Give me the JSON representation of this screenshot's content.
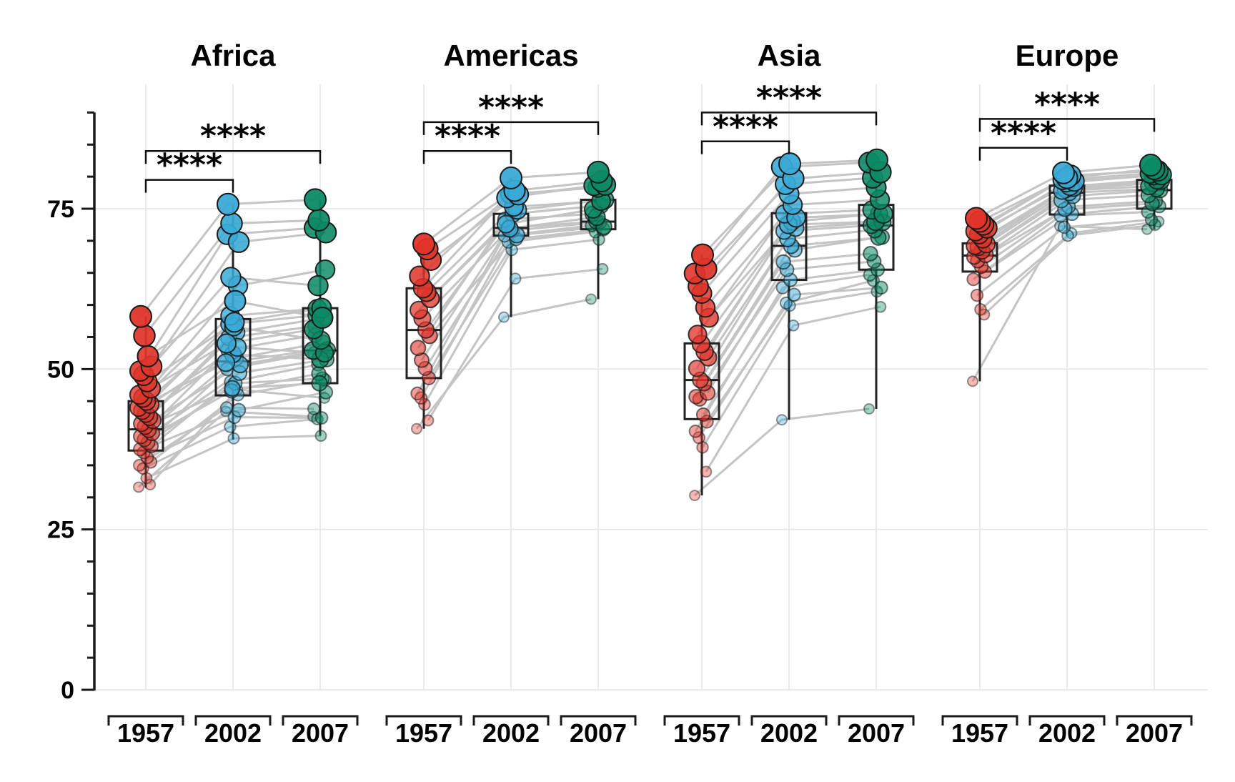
{
  "chart_data": {
    "type": "scatter",
    "subtype": "paired dot plot with boxplots, faceted",
    "ylim": [
      0,
      90
    ],
    "yticks": [
      "0",
      "25",
      "50",
      "75"
    ],
    "ytick_values": [
      0,
      25,
      50,
      75
    ],
    "grid": true,
    "colors": {
      "1957": "#E0342A",
      "2002": "#3AAAD6",
      "2007": "#0B8A65",
      "line": "#C4C4C4",
      "grid": "#E4E4E4"
    },
    "categories": [
      "1957",
      "2002",
      "2007"
    ],
    "facets": [
      {
        "title": "Africa",
        "brackets": [
          {
            "from": "1957",
            "to": "2002",
            "label": "****",
            "y": 79.5
          },
          {
            "from": "1957",
            "to": "2007",
            "label": "****",
            "y": 84
          }
        ],
        "box": {
          "1957": [
            31.5,
            37.3,
            40.6,
            45,
            58.2
          ],
          "2002": [
            39,
            45.9,
            51.2,
            57.8,
            75.7
          ],
          "2007": [
            39.6,
            47.8,
            52.9,
            59.5,
            76.4
          ]
        },
        "series": [
          {
            "values": [
              31.6,
              43.4,
              42.6
            ]
          },
          {
            "values": [
              32,
              46.8,
              45.5
            ]
          },
          {
            "values": [
              33,
              39.2,
              39.6
            ]
          },
          {
            "values": [
              34.5,
              41,
              42.2
            ]
          },
          {
            "values": [
              35,
              44,
              43.8
            ]
          },
          {
            "values": [
              35.5,
              46,
              48.3
            ]
          },
          {
            "values": [
              36.2,
              42.5,
              42.4
            ]
          },
          {
            "values": [
              37,
              48,
              50.7
            ]
          },
          {
            "values": [
              37.5,
              50,
              52.5
            ]
          },
          {
            "values": [
              38,
              43.6,
              46.4
            ]
          },
          {
            "values": [
              38.5,
              47.8,
              48.5
            ]
          },
          {
            "values": [
              39,
              46.6,
              49.3
            ]
          },
          {
            "values": [
              39.5,
              53,
              55.3
            ]
          },
          {
            "values": [
              40,
              49.4,
              51.5
            ]
          },
          {
            "values": [
              40.5,
              51.7,
              54.1
            ]
          },
          {
            "values": [
              41,
              47,
              47.8
            ]
          },
          {
            "values": [
              41.5,
              54.9,
              56.7
            ]
          },
          {
            "values": [
              42,
              50.7,
              53
            ]
          },
          {
            "values": [
              42.5,
              55.7,
              58
            ]
          },
          {
            "values": [
              43,
              52.3,
              51.5
            ]
          },
          {
            "values": [
              43.5,
              57,
              58.4
            ]
          },
          {
            "values": [
              44,
              51,
              52.9
            ]
          },
          {
            "values": [
              44.5,
              53.4,
              52.5
            ]
          },
          {
            "values": [
              45,
              56.6,
              54.5
            ]
          },
          {
            "values": [
              45.5,
              58.3,
              59.4
            ]
          },
          {
            "values": [
              46,
              54,
              56.2
            ]
          },
          {
            "values": [
              47,
              63,
              65.5
            ]
          },
          {
            "values": [
              48,
              57.3,
              59.5
            ]
          },
          {
            "values": [
              49,
              64.3,
              63
            ]
          },
          {
            "values": [
              49.7,
              71,
              72
            ]
          },
          {
            "values": [
              50.4,
              69.8,
              71.3
            ]
          },
          {
            "values": [
              52,
              60.6,
              58
            ]
          },
          {
            "values": [
              55.2,
              72.7,
              73.2
            ]
          },
          {
            "values": [
              58.2,
              75.7,
              76.4
            ]
          }
        ]
      },
      {
        "title": "Americas",
        "brackets": [
          {
            "from": "1957",
            "to": "2002",
            "label": "****",
            "y": 84
          },
          {
            "from": "1957",
            "to": "2007",
            "label": "****",
            "y": 88.5
          }
        ],
        "box": {
          "1957": [
            40.7,
            48.6,
            56.1,
            62.6,
            69.8
          ],
          "2002": [
            58.1,
            70.8,
            72,
            74.2,
            79.8
          ],
          "2007": [
            60.9,
            71.8,
            73,
            76.4,
            80.7
          ]
        },
        "series": [
          {
            "values": [
              40.7,
              58.1,
              60.9
            ]
          },
          {
            "values": [
              42,
              64.1,
              65.6
            ]
          },
          {
            "values": [
              44.5,
              68.6,
              70.2
            ]
          },
          {
            "values": [
              45.5,
              69.8,
              71.4
            ]
          },
          {
            "values": [
              46.2,
              70.8,
              72.4
            ]
          },
          {
            "values": [
              48.6,
              70.3,
              71.8
            ]
          },
          {
            "values": [
              50.1,
              71.6,
              72.9
            ]
          },
          {
            "values": [
              51.4,
              72,
              73
            ]
          },
          {
            "values": [
              53.3,
              73.3,
              74.2
            ]
          },
          {
            "values": [
              55.2,
              70.9,
              72.2
            ]
          },
          {
            "values": [
              56.1,
              74.2,
              75.5
            ]
          },
          {
            "values": [
              57.9,
              71.9,
              73.7
            ]
          },
          {
            "values": [
              59.2,
              72.6,
              74.9
            ]
          },
          {
            "values": [
              61,
              74.8,
              76.4
            ]
          },
          {
            "values": [
              62,
              75.3,
              76.2
            ]
          },
          {
            "values": [
              62.6,
              77.3,
              78.3
            ]
          },
          {
            "values": [
              64.5,
              76.7,
              78.6
            ]
          },
          {
            "values": [
              67,
              77.2,
              78.7
            ]
          },
          {
            "values": [
              68.7,
              77.8,
              79.3
            ]
          },
          {
            "values": [
              69.5,
              79.8,
              80.7
            ]
          }
        ]
      },
      {
        "title": "Asia",
        "brackets": [
          {
            "from": "1957",
            "to": "2002",
            "label": "****",
            "y": 85.5
          },
          {
            "from": "1957",
            "to": "2007",
            "label": "****",
            "y": 90
          }
        ],
        "box": {
          "1957": [
            30.3,
            42.2,
            48.3,
            54,
            67.8
          ],
          "2002": [
            42.1,
            63.9,
            69.2,
            74.3,
            82
          ],
          "2007": [
            43.8,
            65.5,
            72.4,
            75.6,
            82.6
          ]
        },
        "series": [
          {
            "values": [
              30.3,
              42.1,
              43.8
            ]
          },
          {
            "values": [
              34,
              56.8,
              59.7
            ]
          },
          {
            "values": [
              37.8,
              59.9,
              62.1
            ]
          },
          {
            "values": [
              39.3,
              60.3,
              63.8
            ]
          },
          {
            "values": [
              40.3,
              62.7,
              64.7
            ]
          },
          {
            "values": [
              41.8,
              61.6,
              62.7
            ]
          },
          {
            "values": [
              42.9,
              63.9,
              65.5
            ]
          },
          {
            "values": [
              45.3,
              65.5,
              66.8
            ]
          },
          {
            "values": [
              45.7,
              66.7,
              68
            ]
          },
          {
            "values": [
              46.3,
              68.6,
              70.6
            ]
          },
          {
            "values": [
              47.8,
              69.2,
              70.5
            ]
          },
          {
            "values": [
              48.3,
              70.3,
              71.7
            ]
          },
          {
            "values": [
              50.1,
              71.5,
              72.4
            ]
          },
          {
            "values": [
              51.8,
              72,
              72.9
            ]
          },
          {
            "values": [
              52.7,
              73,
              74.2
            ]
          },
          {
            "values": [
              53.9,
              72.5,
              73
            ]
          },
          {
            "values": [
              55.4,
              74.2,
              74.8
            ]
          },
          {
            "values": [
              58,
              73.6,
              74.2
            ]
          },
          {
            "values": [
              59.6,
              75.6,
              76.4
            ]
          },
          {
            "values": [
              61.8,
              77.3,
              78.3
            ]
          },
          {
            "values": [
              62.9,
              78.8,
              79.8
            ]
          },
          {
            "values": [
              64.9,
              81.5,
              82.2
            ]
          },
          {
            "values": [
              65.6,
              79.7,
              80.7
            ]
          },
          {
            "values": [
              67.8,
              82,
              82.6
            ]
          }
        ]
      },
      {
        "title": "Europe",
        "brackets": [
          {
            "from": "1957",
            "to": "2002",
            "label": "****",
            "y": 84.5
          },
          {
            "from": "1957",
            "to": "2007",
            "label": "****",
            "y": 89
          }
        ],
        "box": {
          "1957": [
            48.1,
            65.2,
            67.7,
            69.6,
            73.5
          ],
          "2002": [
            70.8,
            74.1,
            77.5,
            78.6,
            80.6
          ],
          "2007": [
            71.8,
            75,
            77.9,
            79.5,
            81.8
          ]
        },
        "series": [
          {
            "values": [
              48.1,
              72.3,
              71.8
            ]
          },
          {
            "values": [
              58.5,
              71.2,
              73
            ]
          },
          {
            "values": [
              59.3,
              70.8,
              72.5
            ]
          },
          {
            "values": [
              61.5,
              72.1,
              73.3
            ]
          },
          {
            "values": [
              64,
              73.9,
              74.5
            ]
          },
          {
            "values": [
              65.2,
              74.2,
              75.4
            ]
          },
          {
            "values": [
              66,
              75.3,
              76.2
            ]
          },
          {
            "values": [
              66.9,
              74.9,
              75.8
            ]
          },
          {
            "values": [
              67.5,
              76.3,
              77.1
            ]
          },
          {
            "values": [
              67.8,
              77,
              77.9
            ]
          },
          {
            "values": [
              68.4,
              77.5,
              78.1
            ]
          },
          {
            "values": [
              69,
              78,
              79
            ]
          },
          {
            "values": [
              69.2,
              77.8,
              78.5
            ]
          },
          {
            "values": [
              69.5,
              78.3,
              79.4
            ]
          },
          {
            "values": [
              70.3,
              78.5,
              79.5
            ]
          },
          {
            "values": [
              71,
              79.1,
              80.2
            ]
          },
          {
            "values": [
              71.5,
              79.5,
              80.5
            ]
          },
          {
            "values": [
              72,
              79.3,
              80.3
            ]
          },
          {
            "values": [
              72.5,
              80.2,
              80.9
            ]
          },
          {
            "values": [
              73,
              79.8,
              81.2
            ]
          },
          {
            "values": [
              73.5,
              80.6,
              81.8
            ]
          }
        ]
      }
    ]
  }
}
